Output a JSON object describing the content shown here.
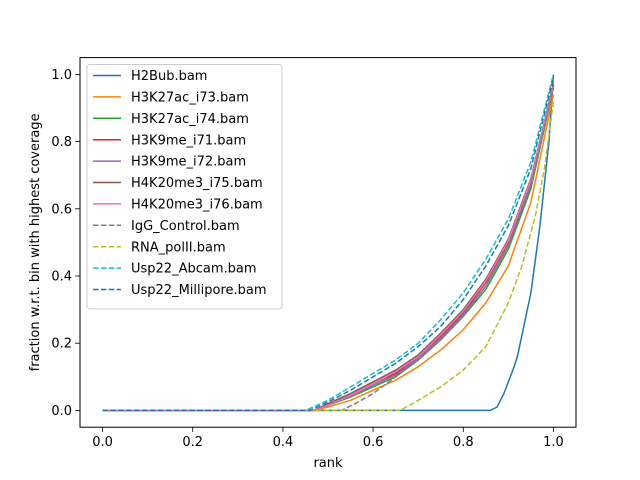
{
  "chart_data": {
    "type": "line",
    "title": "",
    "xlabel": "rank",
    "ylabel": "fraction w.r.t. bin with highest coverage",
    "xlim": [
      -0.05,
      1.05
    ],
    "ylim": [
      -0.05,
      1.05
    ],
    "xticks": [
      0.0,
      0.2,
      0.4,
      0.6,
      0.8,
      1.0
    ],
    "yticks": [
      0.0,
      0.2,
      0.4,
      0.6,
      0.8,
      1.0
    ],
    "xtick_labels": [
      "0.0",
      "0.2",
      "0.4",
      "0.6",
      "0.8",
      "1.0"
    ],
    "ytick_labels": [
      "0.0",
      "0.2",
      "0.4",
      "0.6",
      "0.8",
      "1.0"
    ],
    "grid": false,
    "legend_position": "top-left",
    "series": [
      {
        "name": "H2Bub.bam",
        "color": "#1f77b4",
        "dash": "solid",
        "x": [
          0,
          0.86,
          0.875,
          0.89,
          0.91,
          0.92,
          0.95,
          0.97,
          0.99,
          1.0
        ],
        "y": [
          0,
          0,
          0.01,
          0.05,
          0.12,
          0.16,
          0.35,
          0.55,
          0.8,
          1.0
        ]
      },
      {
        "name": "H3K27ac_i73.bam",
        "color": "#ff7f0e",
        "dash": "solid",
        "x": [
          0,
          0.47,
          0.5,
          0.55,
          0.6,
          0.65,
          0.7,
          0.75,
          0.8,
          0.85,
          0.9,
          0.95,
          1.0
        ],
        "y": [
          0,
          0,
          0.01,
          0.03,
          0.06,
          0.09,
          0.13,
          0.18,
          0.24,
          0.32,
          0.43,
          0.62,
          0.94
        ]
      },
      {
        "name": "H3K27ac_i74.bam",
        "color": "#2ca02c",
        "dash": "solid",
        "x": [
          0,
          0.47,
          0.5,
          0.55,
          0.6,
          0.65,
          0.7,
          0.75,
          0.8,
          0.85,
          0.9,
          0.95,
          1.0
        ],
        "y": [
          0,
          0,
          0.015,
          0.04,
          0.07,
          0.1,
          0.15,
          0.21,
          0.28,
          0.36,
          0.48,
          0.66,
          0.96
        ]
      },
      {
        "name": "H3K9me_i71.bam",
        "color": "#d62728",
        "dash": "solid",
        "x": [
          0,
          0.47,
          0.5,
          0.55,
          0.6,
          0.65,
          0.7,
          0.75,
          0.8,
          0.85,
          0.9,
          0.95,
          1.0
        ],
        "y": [
          0,
          0,
          0.02,
          0.045,
          0.08,
          0.11,
          0.16,
          0.22,
          0.29,
          0.38,
          0.5,
          0.68,
          0.97
        ]
      },
      {
        "name": "H3K9me_i72.bam",
        "color": "#9467bd",
        "dash": "solid",
        "x": [
          0,
          0.47,
          0.5,
          0.55,
          0.6,
          0.65,
          0.7,
          0.75,
          0.8,
          0.85,
          0.9,
          0.95,
          1.0
        ],
        "y": [
          0,
          0,
          0.018,
          0.042,
          0.075,
          0.105,
          0.155,
          0.215,
          0.285,
          0.37,
          0.49,
          0.67,
          0.965
        ]
      },
      {
        "name": "H4K20me3_i75.bam",
        "color": "#8c564b",
        "dash": "solid",
        "x": [
          0,
          0.47,
          0.5,
          0.55,
          0.6,
          0.65,
          0.7,
          0.75,
          0.8,
          0.85,
          0.9,
          0.95,
          1.0
        ],
        "y": [
          0,
          0,
          0.02,
          0.05,
          0.085,
          0.12,
          0.165,
          0.23,
          0.3,
          0.39,
          0.51,
          0.69,
          0.97
        ]
      },
      {
        "name": "H4K20me3_i76.bam",
        "color": "#e377c2",
        "dash": "solid",
        "x": [
          0,
          0.47,
          0.5,
          0.55,
          0.6,
          0.65,
          0.7,
          0.75,
          0.8,
          0.85,
          0.9,
          0.95,
          1.0
        ],
        "y": [
          0,
          0,
          0.015,
          0.045,
          0.08,
          0.115,
          0.16,
          0.225,
          0.295,
          0.385,
          0.505,
          0.685,
          0.965
        ]
      },
      {
        "name": "IgG_Control.bam",
        "color": "#7f7f7f",
        "dash": "dashed",
        "x": [
          0,
          0.53,
          0.56,
          0.6,
          0.65,
          0.7,
          0.75,
          0.8,
          0.85,
          0.9,
          0.95,
          1.0
        ],
        "y": [
          0,
          0,
          0.02,
          0.05,
          0.1,
          0.15,
          0.21,
          0.28,
          0.37,
          0.49,
          0.67,
          0.96
        ]
      },
      {
        "name": "RNA_polII.bam",
        "color": "#bcbd22",
        "dash": "dashed",
        "x": [
          0,
          0.66,
          0.7,
          0.75,
          0.8,
          0.85,
          0.9,
          0.93,
          0.96,
          0.98,
          1.0
        ],
        "y": [
          0,
          0,
          0.03,
          0.07,
          0.12,
          0.19,
          0.32,
          0.43,
          0.58,
          0.72,
          0.92
        ]
      },
      {
        "name": "Usp22_Abcam.bam",
        "color": "#17becf",
        "dash": "dashed",
        "x": [
          0,
          0.45,
          0.5,
          0.55,
          0.6,
          0.65,
          0.7,
          0.75,
          0.8,
          0.85,
          0.9,
          0.95,
          1.0
        ],
        "y": [
          0,
          0,
          0.03,
          0.07,
          0.11,
          0.15,
          0.2,
          0.27,
          0.35,
          0.45,
          0.57,
          0.74,
          1.0
        ]
      },
      {
        "name": "Usp22_Millipore.bam",
        "color": "#1f77b4",
        "dash": "dashed",
        "x": [
          0,
          0.46,
          0.5,
          0.55,
          0.6,
          0.65,
          0.7,
          0.75,
          0.8,
          0.85,
          0.9,
          0.95,
          1.0
        ],
        "y": [
          0,
          0,
          0.025,
          0.06,
          0.1,
          0.14,
          0.19,
          0.25,
          0.33,
          0.43,
          0.55,
          0.72,
          0.99
        ]
      }
    ]
  }
}
